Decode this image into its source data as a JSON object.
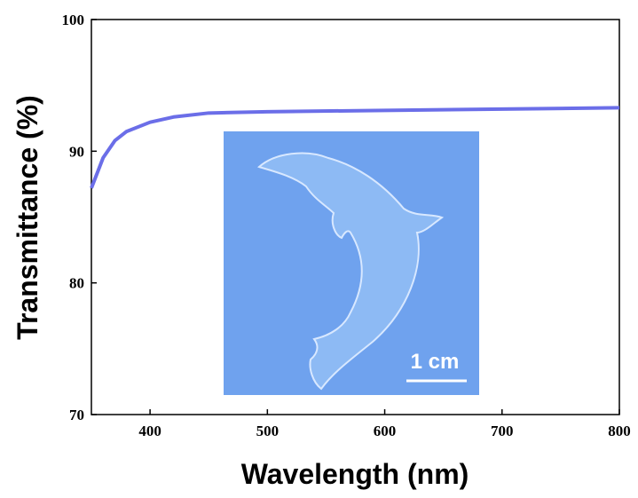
{
  "chart_data": {
    "type": "line",
    "x_label": "Wavelength (nm)",
    "y_label": "Transmittance (%)",
    "x": [
      350,
      360,
      370,
      380,
      400,
      420,
      450,
      500,
      600,
      700,
      800
    ],
    "series": [
      {
        "color": "#6b6ee8",
        "values": [
          87.2,
          89.5,
          90.8,
          91.5,
          92.2,
          92.6,
          92.9,
          93.0,
          93.1,
          93.2,
          93.3
        ]
      }
    ],
    "xlim": [
      350,
      800
    ],
    "xticks": [
      400,
      500,
      600,
      700,
      800
    ],
    "ylim": [
      70,
      100
    ],
    "yticks": [
      70,
      80,
      90,
      100
    ],
    "annotations": [
      "1 cm"
    ]
  }
}
